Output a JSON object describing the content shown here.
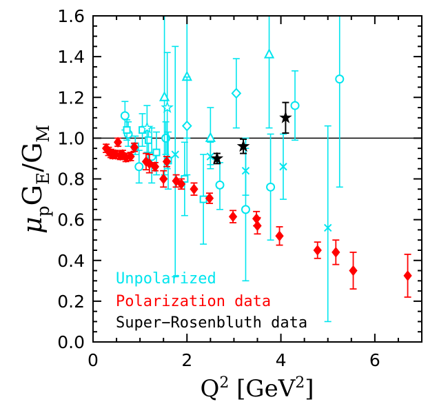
{
  "chart_data": {
    "type": "scatter",
    "title": "",
    "xlabel": {
      "base": "Q",
      "sup": "2",
      "unit_open": " [GeV",
      "unit_sup": "2",
      "unit_close": "]"
    },
    "ylabel": {
      "mu": "μ",
      "mu_sub": "p",
      "ge": "G",
      "ge_sub": "E",
      "slash": "/",
      "gm": "G",
      "gm_sub": "M"
    },
    "xlim": [
      0,
      7
    ],
    "ylim": [
      0,
      1.6
    ],
    "x_ticks": [
      0,
      2,
      4,
      6
    ],
    "x_tick_labels": [
      "0",
      "2",
      "4",
      "6"
    ],
    "y_ticks": [
      0,
      0.2,
      0.4,
      0.6,
      0.8,
      1.0,
      1.2,
      1.4,
      1.6
    ],
    "y_tick_labels": [
      "0.0",
      "0.2",
      "0.4",
      "0.6",
      "0.8",
      "1.0",
      "1.2",
      "1.4",
      "1.6"
    ],
    "reference_line": 1.0,
    "grid": false,
    "legend_placement": "bottom-left",
    "colors": {
      "unpolarized": "#00e5ee",
      "polarization": "#ff0000",
      "super_rosenbluth": "#000000"
    },
    "series": [
      {
        "name": "Unpolarized",
        "color": "#00e5ee",
        "points": [
          {
            "m": "circle",
            "x": 0.68,
            "y": 1.11,
            "lo": 1.04,
            "hi": 1.18
          },
          {
            "m": "circle",
            "x": 0.75,
            "y": 1.02,
            "lo": 0.96,
            "hi": 1.08
          },
          {
            "m": "circle",
            "x": 0.98,
            "y": 0.86,
            "lo": 0.78,
            "hi": 0.94
          },
          {
            "m": "circle",
            "x": 1.25,
            "y": 0.91,
            "lo": 0.78,
            "hi": 1.05
          },
          {
            "m": "circle",
            "x": 1.55,
            "y": 1.0,
            "lo": 0.92,
            "hi": 1.08
          },
          {
            "m": "circle",
            "x": 2.7,
            "y": 0.77,
            "lo": 0.65,
            "hi": 0.88
          },
          {
            "m": "circle",
            "x": 3.25,
            "y": 0.65,
            "lo": 0.3,
            "hi": 1.0
          },
          {
            "m": "circle",
            "x": 3.78,
            "y": 0.76,
            "lo": 0.5,
            "hi": 1.02
          },
          {
            "m": "circle",
            "x": 4.3,
            "y": 1.16,
            "lo": 0.99,
            "hi": 1.33
          },
          {
            "m": "circle",
            "x": 5.25,
            "y": 1.29,
            "lo": 0.76,
            "hi": 1.82
          },
          {
            "m": "square",
            "x": 0.72,
            "y": 1.04,
            "lo": 0.99,
            "hi": 1.09
          },
          {
            "m": "square",
            "x": 0.9,
            "y": 0.96,
            "lo": 0.92,
            "hi": 1.01
          },
          {
            "m": "square",
            "x": 1.05,
            "y": 1.04,
            "lo": 0.96,
            "hi": 1.12
          },
          {
            "m": "square",
            "x": 1.18,
            "y": 0.99,
            "lo": 0.93,
            "hi": 1.05
          },
          {
            "m": "square",
            "x": 1.35,
            "y": 0.93,
            "lo": 0.82,
            "hi": 1.03
          },
          {
            "m": "square",
            "x": 1.6,
            "y": 0.89,
            "lo": 0.75,
            "hi": 1.03
          },
          {
            "m": "square",
            "x": 1.95,
            "y": 0.8,
            "lo": 0.62,
            "hi": 0.98
          },
          {
            "m": "square",
            "x": 2.35,
            "y": 0.7,
            "lo": 0.48,
            "hi": 0.92
          },
          {
            "m": "triangle",
            "x": 1.52,
            "y": 1.2,
            "lo": 0.82,
            "hi": 1.6
          },
          {
            "m": "triangle",
            "x": 2.0,
            "y": 1.3,
            "lo": 1.0,
            "hi": 1.6
          },
          {
            "m": "triangle",
            "x": 2.5,
            "y": 1.0,
            "lo": 0.87,
            "hi": 1.15
          },
          {
            "m": "triangle",
            "x": 3.75,
            "y": 1.41,
            "lo": 1.05,
            "hi": 1.6
          },
          {
            "m": "diamond",
            "x": 2.0,
            "y": 1.06,
            "lo": 0.82,
            "hi": 1.3
          },
          {
            "m": "diamond",
            "x": 3.05,
            "y": 1.22,
            "lo": 1.05,
            "hi": 1.39
          },
          {
            "m": "star",
            "x": 1.15,
            "y": 1.05,
            "lo": 0.93,
            "hi": 1.16
          },
          {
            "m": "star",
            "x": 1.58,
            "y": 1.15,
            "lo": 0.85,
            "hi": 1.42
          },
          {
            "m": "cross",
            "x": 1.75,
            "y": 0.92,
            "lo": 0.32,
            "hi": 1.45
          },
          {
            "m": "cross",
            "x": 2.5,
            "y": 0.91,
            "lo": 0.85,
            "hi": 0.98
          },
          {
            "m": "cross",
            "x": 3.25,
            "y": 0.84,
            "lo": 0.72,
            "hi": 0.95
          },
          {
            "m": "cross",
            "x": 4.05,
            "y": 0.86,
            "lo": 0.7,
            "hi": 1.02
          },
          {
            "m": "cross",
            "x": 5.0,
            "y": 0.56,
            "lo": 0.1,
            "hi": 1.06
          }
        ]
      },
      {
        "name": "Polarization data",
        "color": "#ff0000",
        "points": [
          {
            "x": 0.28,
            "y": 0.95,
            "lo": 0.93,
            "hi": 0.97
          },
          {
            "x": 0.33,
            "y": 0.935,
            "lo": 0.915,
            "hi": 0.955
          },
          {
            "x": 0.38,
            "y": 0.925,
            "lo": 0.905,
            "hi": 0.945
          },
          {
            "x": 0.42,
            "y": 0.92,
            "lo": 0.9,
            "hi": 0.94
          },
          {
            "x": 0.48,
            "y": 0.92,
            "lo": 0.9,
            "hi": 0.94
          },
          {
            "x": 0.53,
            "y": 0.98,
            "lo": 0.96,
            "hi": 1.0
          },
          {
            "x": 0.58,
            "y": 0.915,
            "lo": 0.895,
            "hi": 0.935
          },
          {
            "x": 0.63,
            "y": 0.92,
            "lo": 0.9,
            "hi": 0.94
          },
          {
            "x": 0.7,
            "y": 0.905,
            "lo": 0.885,
            "hi": 0.925
          },
          {
            "x": 0.8,
            "y": 0.91,
            "lo": 0.89,
            "hi": 0.93
          },
          {
            "x": 0.88,
            "y": 0.955,
            "lo": 0.935,
            "hi": 0.975
          },
          {
            "x": 1.13,
            "y": 0.885,
            "lo": 0.845,
            "hi": 0.925
          },
          {
            "x": 1.2,
            "y": 0.875,
            "lo": 0.83,
            "hi": 0.92
          },
          {
            "x": 1.32,
            "y": 0.86,
            "lo": 0.84,
            "hi": 0.88
          },
          {
            "x": 1.5,
            "y": 0.8,
            "lo": 0.76,
            "hi": 0.84
          },
          {
            "x": 1.57,
            "y": 0.885,
            "lo": 0.86,
            "hi": 0.91
          },
          {
            "x": 1.77,
            "y": 0.79,
            "lo": 0.76,
            "hi": 0.82
          },
          {
            "x": 1.88,
            "y": 0.775,
            "lo": 0.75,
            "hi": 0.8
          },
          {
            "x": 2.15,
            "y": 0.75,
            "lo": 0.72,
            "hi": 0.78
          },
          {
            "x": 2.48,
            "y": 0.705,
            "lo": 0.68,
            "hi": 0.73
          },
          {
            "x": 2.98,
            "y": 0.615,
            "lo": 0.585,
            "hi": 0.645
          },
          {
            "x": 3.48,
            "y": 0.605,
            "lo": 0.57,
            "hi": 0.64
          },
          {
            "x": 3.5,
            "y": 0.57,
            "lo": 0.53,
            "hi": 0.61
          },
          {
            "x": 3.97,
            "y": 0.52,
            "lo": 0.475,
            "hi": 0.565
          },
          {
            "x": 4.78,
            "y": 0.45,
            "lo": 0.41,
            "hi": 0.49
          },
          {
            "x": 5.17,
            "y": 0.44,
            "lo": 0.38,
            "hi": 0.5
          },
          {
            "x": 5.54,
            "y": 0.35,
            "lo": 0.26,
            "hi": 0.44
          },
          {
            "x": 6.7,
            "y": 0.325,
            "lo": 0.22,
            "hi": 0.43
          }
        ]
      },
      {
        "name": "Super-Rosenbluth data",
        "color": "#000000",
        "points": [
          {
            "x": 2.64,
            "y": 0.9,
            "lo": 0.875,
            "hi": 0.925
          },
          {
            "x": 3.2,
            "y": 0.96,
            "lo": 0.925,
            "hi": 0.995
          },
          {
            "x": 4.1,
            "y": 1.1,
            "lo": 1.025,
            "hi": 1.175
          }
        ]
      }
    ],
    "legend": [
      {
        "label": "Unpolarized",
        "color": "#00e5ee"
      },
      {
        "label": "Polarization data",
        "color": "#ff0000"
      },
      {
        "label": "Super−Rosenbluth data",
        "color": "#000000"
      }
    ]
  }
}
